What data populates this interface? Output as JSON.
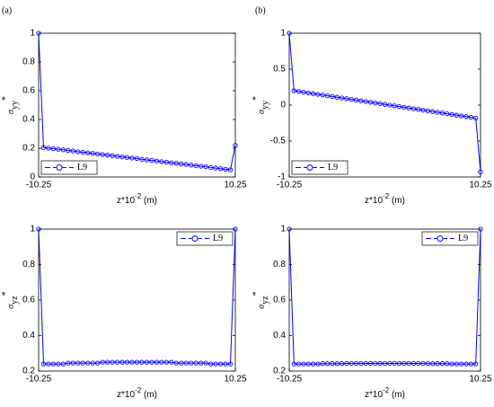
{
  "chart_data": [
    {
      "type": "line",
      "panel_label": "(a)",
      "ylabel": {
        "symbol": "σ",
        "sub": "yy",
        "sup": "*"
      },
      "xlabel": {
        "base": "z*10",
        "sup": "-2",
        "unit": "(m)"
      },
      "x": [
        -10.25,
        -9.7375,
        -9.225,
        -8.7125,
        -8.2,
        -7.6875,
        -7.175,
        -6.6625,
        -6.15,
        -5.6375,
        -5.125,
        -4.6125,
        -4.1,
        -3.5875,
        -3.075,
        -2.5625,
        -2.05,
        -1.5375,
        -1.025,
        -0.5125,
        0,
        0.5125,
        1.025,
        1.5375,
        2.05,
        2.5625,
        3.075,
        3.5875,
        4.1,
        4.6125,
        5.125,
        5.6375,
        6.15,
        6.6625,
        7.175,
        7.6875,
        8.2,
        8.7125,
        9.225,
        9.7375,
        10.25
      ],
      "xlim": [
        -10.25,
        10.25
      ],
      "xticks": [
        -10.25,
        10.25
      ],
      "ylim": [
        0,
        1
      ],
      "yticks": [
        0,
        0.2,
        0.4,
        0.6,
        0.8,
        1
      ],
      "legend": "lower left",
      "series": [
        {
          "name": "L9",
          "color": "#0000ff",
          "values": [
            1,
            0.205,
            0.201,
            0.197,
            0.193,
            0.189,
            0.185,
            0.181,
            0.176,
            0.172,
            0.168,
            0.164,
            0.16,
            0.156,
            0.152,
            0.148,
            0.144,
            0.14,
            0.136,
            0.132,
            0.128,
            0.123,
            0.119,
            0.115,
            0.111,
            0.107,
            0.103,
            0.099,
            0.095,
            0.091,
            0.087,
            0.083,
            0.079,
            0.075,
            0.071,
            0.066,
            0.062,
            0.058,
            0.054,
            0.05,
            0.22
          ]
        }
      ]
    },
    {
      "type": "line",
      "panel_label": "(b)",
      "ylabel": {
        "symbol": "σ",
        "sub": "yy",
        "sup": "*"
      },
      "xlabel": {
        "base": "z*10",
        "sup": "-2",
        "unit": "(m)"
      },
      "x": [
        -10.25,
        -9.7375,
        -9.225,
        -8.7125,
        -8.2,
        -7.6875,
        -7.175,
        -6.6625,
        -6.15,
        -5.6375,
        -5.125,
        -4.6125,
        -4.1,
        -3.5875,
        -3.075,
        -2.5625,
        -2.05,
        -1.5375,
        -1.025,
        -0.5125,
        0,
        0.5125,
        1.025,
        1.5375,
        2.05,
        2.5625,
        3.075,
        3.5875,
        4.1,
        4.6125,
        5.125,
        5.6375,
        6.15,
        6.6625,
        7.175,
        7.6875,
        8.2,
        8.7125,
        9.225,
        9.7375,
        10.25
      ],
      "xlim": [
        -10.25,
        10.25
      ],
      "xticks": [
        -10.25,
        10.25
      ],
      "ylim": [
        -1,
        1
      ],
      "yticks": [
        -1,
        -0.5,
        0,
        0.5,
        1
      ],
      "legend": "lower left",
      "series": [
        {
          "name": "L9",
          "color": "#0000ff",
          "values": [
            1,
            0.2,
            0.19,
            0.18,
            0.17,
            0.16,
            0.15,
            0.14,
            0.13,
            0.12,
            0.11,
            0.1,
            0.09,
            0.08,
            0.07,
            0.06,
            0.05,
            0.04,
            0.03,
            0.02,
            0.01,
            0,
            -0.01,
            -0.02,
            -0.03,
            -0.04,
            -0.05,
            -0.06,
            -0.07,
            -0.08,
            -0.09,
            -0.1,
            -0.11,
            -0.12,
            -0.13,
            -0.14,
            -0.15,
            -0.16,
            -0.17,
            -0.18,
            -0.93
          ]
        }
      ]
    },
    {
      "type": "line",
      "ylabel": {
        "symbol": "σ",
        "sub": "yz",
        "sup": "*"
      },
      "xlabel": {
        "base": "z*10",
        "sup": "-2",
        "unit": "(m)"
      },
      "x": [
        -10.25,
        -9.7375,
        -9.225,
        -8.7125,
        -8.2,
        -7.6875,
        -7.175,
        -6.6625,
        -6.15,
        -5.6375,
        -5.125,
        -4.6125,
        -4.1,
        -3.5875,
        -3.075,
        -2.5625,
        -2.05,
        -1.5375,
        -1.025,
        -0.5125,
        0,
        0.5125,
        1.025,
        1.5375,
        2.05,
        2.5625,
        3.075,
        3.5875,
        4.1,
        4.6125,
        5.125,
        5.6375,
        6.15,
        6.6625,
        7.175,
        7.6875,
        8.2,
        8.7125,
        9.225,
        9.7375,
        10.25
      ],
      "xlim": [
        -10.25,
        10.25
      ],
      "xticks": [
        -10.25,
        10.25
      ],
      "ylim": [
        0.2,
        1
      ],
      "yticks": [
        0.2,
        0.4,
        0.6,
        0.8,
        1
      ],
      "legend": "upper right",
      "series": [
        {
          "name": "L9",
          "color": "#0000ff",
          "values": [
            1,
            0.24,
            0.24,
            0.24,
            0.24,
            0.24,
            0.245,
            0.245,
            0.245,
            0.245,
            0.245,
            0.245,
            0.245,
            0.25,
            0.25,
            0.25,
            0.25,
            0.25,
            0.25,
            0.25,
            0.25,
            0.25,
            0.25,
            0.25,
            0.25,
            0.25,
            0.25,
            0.25,
            0.245,
            0.245,
            0.245,
            0.245,
            0.245,
            0.245,
            0.245,
            0.24,
            0.24,
            0.24,
            0.24,
            0.24,
            1
          ]
        }
      ]
    },
    {
      "type": "line",
      "ylabel": {
        "symbol": "σ",
        "sub": "yz",
        "sup": "*"
      },
      "xlabel": {
        "base": "z*10",
        "sup": "-2",
        "unit": "(m)"
      },
      "x": [
        -10.25,
        -9.7375,
        -9.225,
        -8.7125,
        -8.2,
        -7.6875,
        -7.175,
        -6.6625,
        -6.15,
        -5.6375,
        -5.125,
        -4.6125,
        -4.1,
        -3.5875,
        -3.075,
        -2.5625,
        -2.05,
        -1.5375,
        -1.025,
        -0.5125,
        0,
        0.5125,
        1.025,
        1.5375,
        2.05,
        2.5625,
        3.075,
        3.5875,
        4.1,
        4.6125,
        5.125,
        5.6375,
        6.15,
        6.6625,
        7.175,
        7.6875,
        8.2,
        8.7125,
        9.225,
        9.7375,
        10.25
      ],
      "xlim": [
        -10.25,
        10.25
      ],
      "xticks": [
        -10.25,
        10.25
      ],
      "ylim": [
        0.2,
        1
      ],
      "yticks": [
        0.2,
        0.4,
        0.6,
        0.8,
        1
      ],
      "legend": "upper right",
      "series": [
        {
          "name": "L9",
          "color": "#0000ff",
          "values": [
            1,
            0.24,
            0.24,
            0.24,
            0.24,
            0.24,
            0.24,
            0.242,
            0.242,
            0.242,
            0.242,
            0.242,
            0.243,
            0.243,
            0.243,
            0.243,
            0.243,
            0.243,
            0.243,
            0.243,
            0.243,
            0.243,
            0.243,
            0.243,
            0.243,
            0.243,
            0.243,
            0.243,
            0.243,
            0.242,
            0.242,
            0.242,
            0.242,
            0.242,
            0.24,
            0.24,
            0.24,
            0.24,
            0.24,
            0.24,
            1
          ]
        }
      ]
    }
  ]
}
